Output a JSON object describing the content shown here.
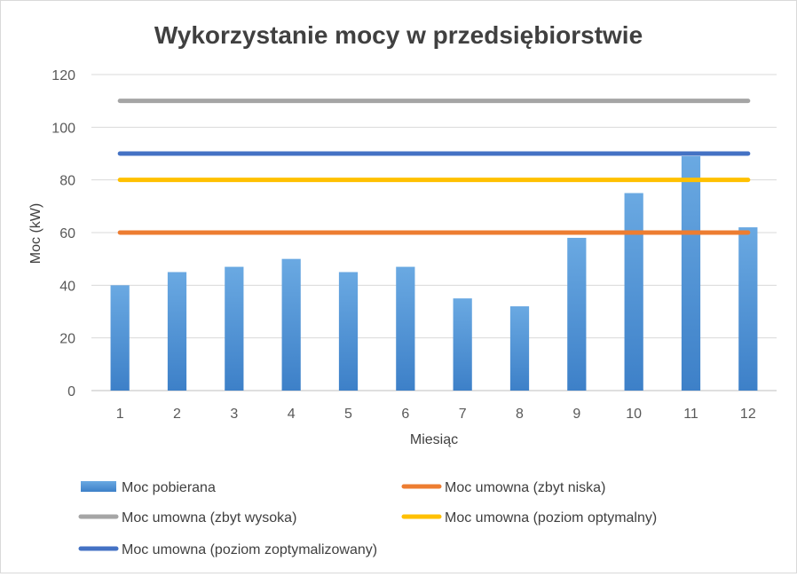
{
  "chart_data": {
    "type": "bar",
    "title": "Wykorzystanie mocy w przedsiębiorstwie",
    "xlabel": "Miesiąc",
    "ylabel": "Moc (kW)",
    "ylim": [
      0,
      120
    ],
    "yticks": [
      0,
      20,
      40,
      60,
      80,
      100,
      120
    ],
    "grid": true,
    "legend_position": "bottom",
    "categories": [
      "1",
      "2",
      "3",
      "4",
      "5",
      "6",
      "7",
      "8",
      "9",
      "10",
      "11",
      "12"
    ],
    "bar_series": {
      "name": "Moc pobierana",
      "color": "#5b9bd5",
      "values": [
        40,
        45,
        47,
        50,
        45,
        47,
        35,
        32,
        58,
        75,
        89,
        62
      ]
    },
    "line_series": [
      {
        "name": "Moc umowna (zbyt niska)",
        "color": "#ed7d31",
        "values": [
          60,
          60,
          60,
          60,
          60,
          60,
          60,
          60,
          60,
          60,
          60,
          60
        ]
      },
      {
        "name": "Moc umowna (zbyt wysoka)",
        "color": "#a5a5a5",
        "values": [
          110,
          110,
          110,
          110,
          110,
          110,
          110,
          110,
          110,
          110,
          110,
          110
        ]
      },
      {
        "name": "Moc umowna (poziom optymalny)",
        "color": "#ffc000",
        "values": [
          80,
          80,
          80,
          80,
          80,
          80,
          80,
          80,
          80,
          80,
          80,
          80
        ]
      },
      {
        "name": "Moc umowna (poziom zoptymalizowany)",
        "color": "#4472c4",
        "values": [
          90,
          90,
          90,
          90,
          90,
          90,
          90,
          90,
          90,
          90,
          90,
          90
        ]
      }
    ]
  }
}
